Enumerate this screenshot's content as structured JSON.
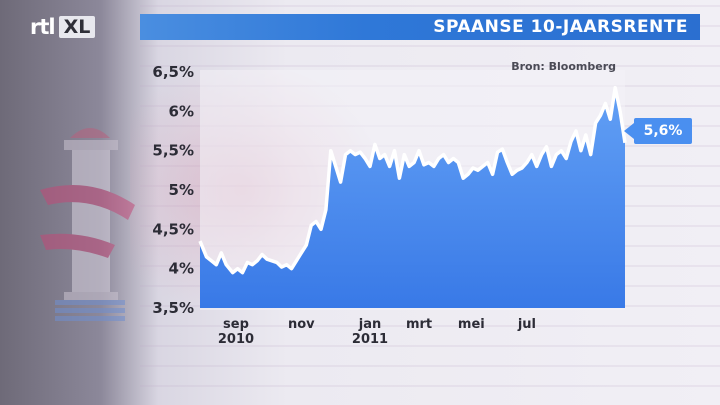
{
  "header": {
    "logo_text": "rtl",
    "logo_badge": "XL",
    "title": "SPAANSE 10-JAARSRENTE"
  },
  "source_label": "Bron: Bloomberg",
  "colors": {
    "title_bar": "#2f78d8",
    "area_fill": "#3f86ee",
    "line": "#ffffff",
    "callout": "#4a8ff0"
  },
  "chart_data": {
    "type": "area",
    "title": "SPAANSE 10-JAARSRENTE",
    "xlabel": "",
    "ylabel": "",
    "ylim": [
      3.5,
      6.5
    ],
    "yticks": [
      "3,5%",
      "4%",
      "4,5%",
      "5%",
      "5,5%",
      "6%",
      "6,5%"
    ],
    "ytick_values": [
      3.5,
      4.0,
      4.5,
      5.0,
      5.5,
      6.0,
      6.5
    ],
    "xlim": [
      0,
      13
    ],
    "xticks": [
      {
        "x": 1.1,
        "label": "sep",
        "sub": "2010"
      },
      {
        "x": 3.1,
        "label": "nov",
        "sub": ""
      },
      {
        "x": 5.2,
        "label": "jan",
        "sub": "2011"
      },
      {
        "x": 6.7,
        "label": "mrt",
        "sub": ""
      },
      {
        "x": 8.3,
        "label": "mei",
        "sub": ""
      },
      {
        "x": 10.0,
        "label": "jul",
        "sub": ""
      }
    ],
    "last_value_label": "5,6%",
    "grid": false,
    "x": [
      0.0,
      0.2,
      0.35,
      0.5,
      0.65,
      0.8,
      1.0,
      1.15,
      1.3,
      1.45,
      1.6,
      1.75,
      1.9,
      2.05,
      2.2,
      2.35,
      2.5,
      2.65,
      2.8,
      2.95,
      3.1,
      3.25,
      3.4,
      3.55,
      3.7,
      3.85,
      4.0,
      4.15,
      4.3,
      4.45,
      4.6,
      4.75,
      4.9,
      5.05,
      5.2,
      5.35,
      5.5,
      5.65,
      5.8,
      5.95,
      6.1,
      6.25,
      6.4,
      6.55,
      6.7,
      6.85,
      7.0,
      7.15,
      7.3,
      7.45,
      7.6,
      7.75,
      7.9,
      8.05,
      8.2,
      8.35,
      8.5,
      8.65,
      8.8,
      8.95,
      9.1,
      9.25,
      9.4,
      9.55,
      9.7,
      9.85,
      10.0,
      10.15,
      10.3,
      10.45,
      10.6,
      10.75,
      10.9,
      11.05,
      11.2,
      11.35,
      11.5,
      11.65,
      11.8,
      11.95,
      12.1,
      12.25,
      12.4,
      12.55,
      12.7,
      12.85,
      13.0
    ],
    "series": [
      {
        "values": [
          4.35,
          4.15,
          4.1,
          4.05,
          4.2,
          4.05,
          3.95,
          4.0,
          3.95,
          4.08,
          4.05,
          4.1,
          4.18,
          4.12,
          4.1,
          4.08,
          4.02,
          4.05,
          4.0,
          4.1,
          4.2,
          4.3,
          4.55,
          4.6,
          4.5,
          4.75,
          5.5,
          5.3,
          5.1,
          5.45,
          5.5,
          5.45,
          5.48,
          5.4,
          5.3,
          5.58,
          5.4,
          5.45,
          5.3,
          5.5,
          5.15,
          5.45,
          5.3,
          5.35,
          5.5,
          5.32,
          5.35,
          5.3,
          5.4,
          5.45,
          5.35,
          5.4,
          5.35,
          5.15,
          5.2,
          5.28,
          5.25,
          5.3,
          5.35,
          5.2,
          5.48,
          5.52,
          5.35,
          5.2,
          5.25,
          5.28,
          5.35,
          5.45,
          5.3,
          5.45,
          5.55,
          5.3,
          5.45,
          5.5,
          5.4,
          5.62,
          5.75,
          5.5,
          5.7,
          5.45,
          5.85,
          5.95,
          6.1,
          5.9,
          6.3,
          6.0,
          5.6
        ]
      }
    ]
  }
}
